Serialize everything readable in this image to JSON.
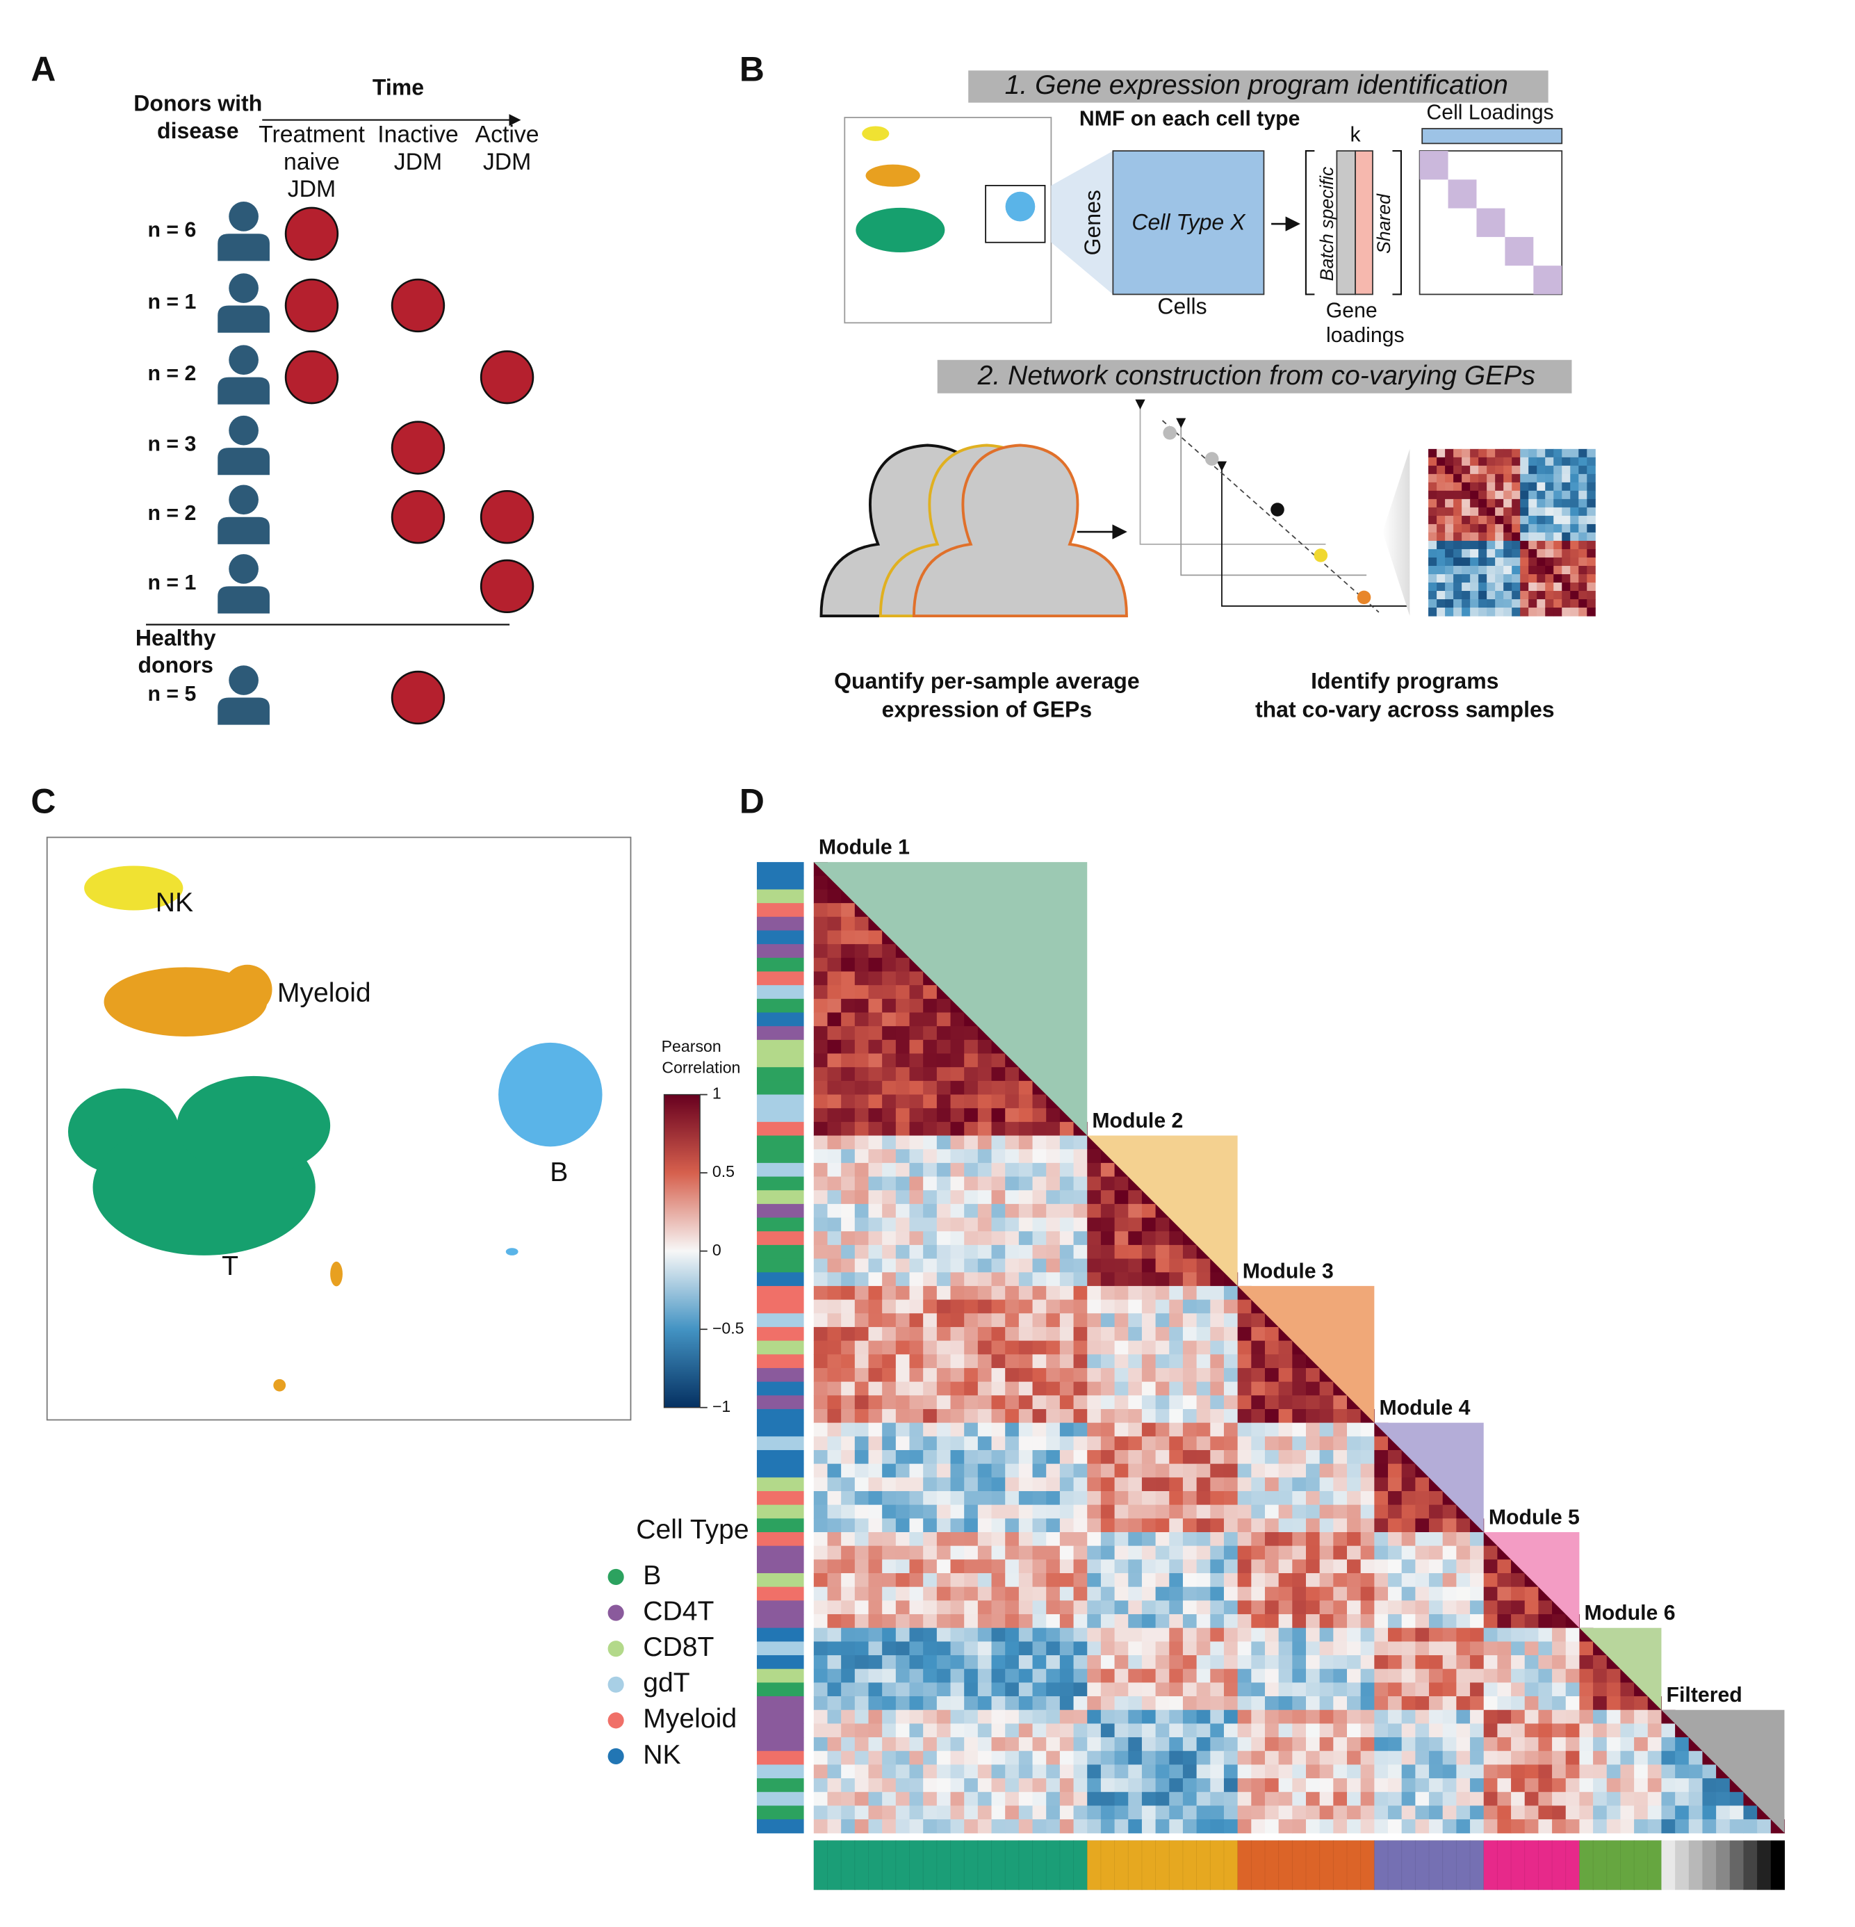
{
  "panels": {
    "A": {
      "label": "A",
      "time": "Time",
      "disease_group": [
        "Donors with",
        "disease"
      ],
      "timepoints": [
        [
          "Treatment",
          "naive",
          "JDM"
        ],
        [
          "Inactive",
          "JDM"
        ],
        [
          "Active",
          "JDM"
        ]
      ],
      "rows": [
        {
          "n": "n = 6",
          "samples": [
            true,
            false,
            false
          ]
        },
        {
          "n": "n = 1",
          "samples": [
            true,
            true,
            false
          ]
        },
        {
          "n": "n = 2",
          "samples": [
            true,
            false,
            true
          ]
        },
        {
          "n": "n = 3",
          "samples": [
            false,
            true,
            false
          ]
        },
        {
          "n": "n = 2",
          "samples": [
            false,
            true,
            true
          ]
        },
        {
          "n": "n = 1",
          "samples": [
            false,
            false,
            true
          ]
        }
      ],
      "healthy_group": [
        "Healthy",
        "donors"
      ],
      "healthy_row": {
        "n": "n = 5",
        "samples": [
          false,
          true,
          false
        ]
      }
    },
    "B": {
      "label": "B",
      "step1": "1. Gene expression program identification",
      "nmf": "NMF on each cell type",
      "genes": "Genes",
      "cell_type": "Cell Type X",
      "cells": "Cells",
      "k": "k",
      "batch": "Batch specific",
      "shared": "Shared",
      "gene_loadings": [
        "Gene",
        "loadings"
      ],
      "cell_loadings": "Cell Loadings",
      "step2": "2. Network construction from co-varying GEPs",
      "caption_left": [
        "Quantify per-sample average",
        "expression of GEPs"
      ],
      "caption_right": [
        "Identify programs",
        "that co-vary across samples"
      ]
    },
    "C": {
      "label": "C",
      "clusters": [
        {
          "name": "NK",
          "color": "#f0e232"
        },
        {
          "name": "Myeloid",
          "color": "#e8a020"
        },
        {
          "name": "B",
          "color": "#5ab4e8"
        },
        {
          "name": "T",
          "color": "#16a06e"
        }
      ]
    },
    "D": {
      "label": "D",
      "colorbar_title": [
        "Pearson",
        "Correlation"
      ],
      "colorbar_ticks": [
        1,
        0.5,
        0,
        {
          "value": -0.5,
          "label": "−0.5"
        },
        {
          "value": -1,
          "label": "−1"
        }
      ],
      "legend_title": "Cell Type",
      "cell_types": [
        {
          "name": "B",
          "color": "#2ca25f"
        },
        {
          "name": "CD4T",
          "color": "#8a5a9c"
        },
        {
          "name": "CD8T",
          "color": "#b3d98a"
        },
        {
          "name": "gdT",
          "color": "#a8cfe5"
        },
        {
          "name": "Myeloid",
          "color": "#f07068"
        },
        {
          "name": "NK",
          "color": "#2276b4"
        }
      ],
      "modules": [
        {
          "name": "Module 1",
          "size": 20,
          "color": "#1b9e77",
          "shade": "#9cc9b3"
        },
        {
          "name": "Module 2",
          "size": 11,
          "color": "#e6a820",
          "shade": "#f4d190"
        },
        {
          "name": "Module 3",
          "size": 10,
          "color": "#dc6428",
          "shade": "#f0a878"
        },
        {
          "name": "Module 4",
          "size": 8,
          "color": "#7570b3",
          "shade": "#b4add8"
        },
        {
          "name": "Module 5",
          "size": 7,
          "color": "#e7298a",
          "shade": "#f39cc4"
        },
        {
          "name": "Module 6",
          "size": 6,
          "color": "#66a640",
          "shade": "#b8d69c"
        },
        {
          "name": "Filtered",
          "size": 9,
          "color": "#888888",
          "shade": "#a6a6a6"
        }
      ]
    }
  }
}
